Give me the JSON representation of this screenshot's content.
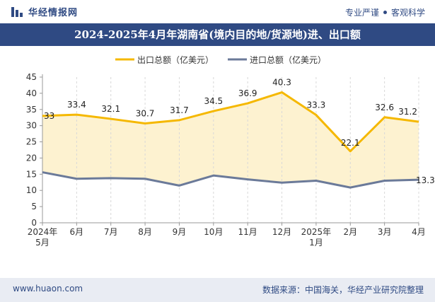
{
  "header": {
    "brand": "华经情报网",
    "tagline_left": "专业严谨",
    "tagline_right": "客观科学"
  },
  "title": "2024-2025年4月年湖南省(境内目的地/货源地)进、出口额",
  "footer": {
    "url": "www.huaon.com",
    "source": "数据来源：中国海关，华经产业研究院整理"
  },
  "colors": {
    "brand": "#2f4a83",
    "export": "#f5b800",
    "export_fill": "#fdf2d0",
    "import": "#6b7a99"
  },
  "chart_data": {
    "type": "area",
    "categories": [
      [
        "2024年",
        "5月"
      ],
      [
        "6月"
      ],
      [
        "7月"
      ],
      [
        "8月"
      ],
      [
        "9月"
      ],
      [
        "10月"
      ],
      [
        "11月"
      ],
      [
        "12月"
      ],
      [
        "2025年",
        "1月"
      ],
      [
        "2月"
      ],
      [
        "3月"
      ],
      [
        "4月"
      ]
    ],
    "series": [
      {
        "name": "出口总额（亿美元）",
        "values": [
          33,
          33.4,
          32.1,
          30.7,
          31.7,
          34.5,
          36.9,
          40.3,
          33.3,
          22.1,
          32.6,
          31.2
        ],
        "labels": true
      },
      {
        "name": "进口总额（亿美元）",
        "values": [
          15.6,
          13.6,
          13.8,
          13.6,
          11.5,
          14.6,
          13.4,
          12.4,
          13.0,
          10.9,
          13.0,
          13.3
        ],
        "labels_last_only": true,
        "last_label": "13.3"
      }
    ],
    "ylim": [
      0,
      45
    ],
    "yticks": [
      0,
      5,
      10,
      15,
      20,
      25,
      30,
      35,
      40,
      45
    ],
    "legend": "top-center",
    "grid": "vertical-dashed"
  }
}
